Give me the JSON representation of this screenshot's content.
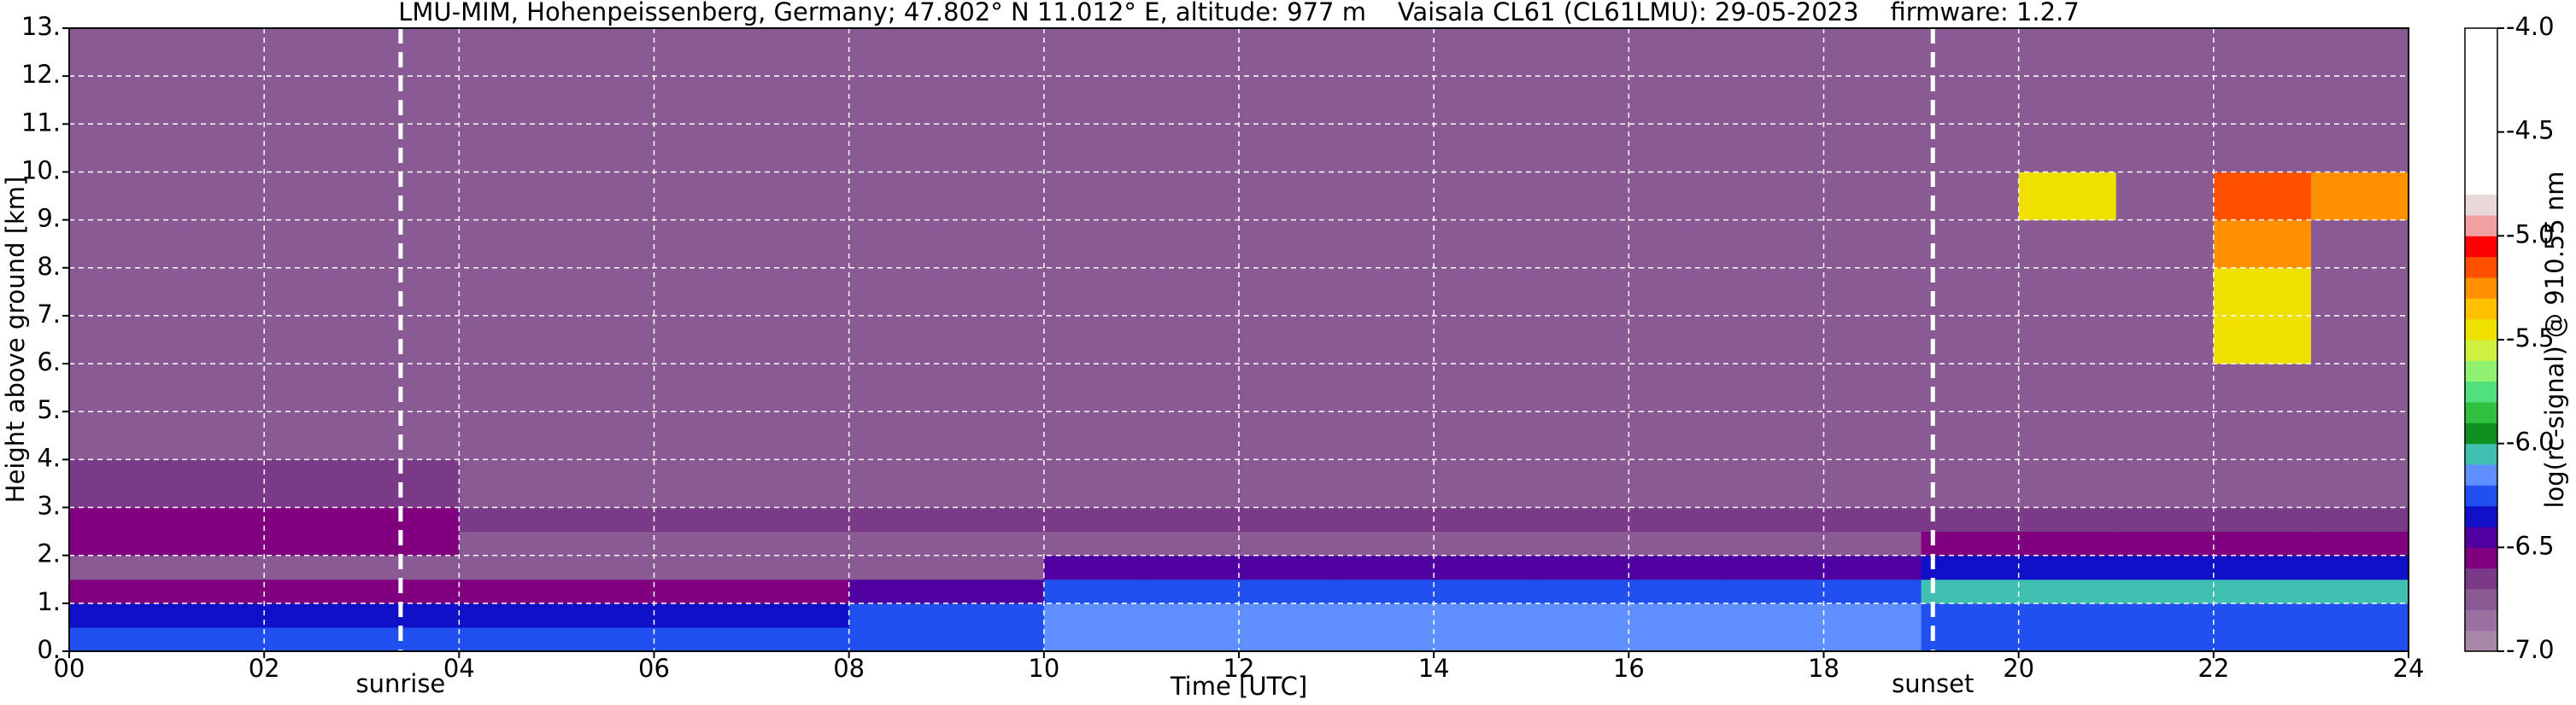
{
  "chart_data": {
    "type": "heatmap",
    "title": "LMU-MIM, Hohenpeissenberg, Germany; 47.802° N 11.012° E, altitude: 977 m    Vaisala CL61 (CL61LMU): 29-05-2023    firmware: 1.2.7",
    "x_label": "Time [UTC]",
    "y_label": "Height above ground [km]",
    "colorbar_label": "log(rc-signal) @ 910.55 nm",
    "x_bins": [
      0,
      1,
      2,
      3,
      4,
      5,
      6,
      7,
      8,
      9,
      10,
      11,
      12,
      13,
      14,
      15,
      16,
      17,
      18,
      19,
      20,
      21,
      22,
      23,
      24
    ],
    "y_bins": [
      0,
      0.5,
      1,
      1.5,
      2,
      2.5,
      3,
      4,
      6,
      8,
      9,
      10,
      13
    ],
    "z": [
      [
        -6.3,
        -6.3,
        -6.3,
        -6.3,
        -6.3,
        -6.3,
        -6.3,
        -6.3,
        -6.3,
        -6.2,
        -6.15,
        -6.15,
        -6.15,
        -6.15,
        -6.15,
        -6.15,
        -6.15,
        -6.15,
        -6.15,
        -6.2,
        -6.2,
        -6.2,
        -6.2,
        -6.2
      ],
      [
        -6.35,
        -6.35,
        -6.35,
        -6.35,
        -6.35,
        -6.35,
        -6.35,
        -6.35,
        -6.3,
        -6.3,
        -6.15,
        -6.15,
        -6.15,
        -6.15,
        -6.15,
        -6.15,
        -6.15,
        -6.15,
        -6.15,
        -6.2,
        -6.2,
        -6.2,
        -6.2,
        -6.2
      ],
      [
        -6.6,
        -6.6,
        -6.6,
        -6.6,
        -6.6,
        -6.6,
        -6.6,
        -6.6,
        -6.5,
        -6.5,
        -6.2,
        -6.2,
        -6.2,
        -6.2,
        -6.2,
        -6.2,
        -6.2,
        -6.2,
        -6.2,
        -6.1,
        -6.1,
        -6.1,
        -6.1,
        -6.1
      ],
      [
        -6.7,
        -6.7,
        -6.7,
        -6.7,
        -6.7,
        -6.7,
        -6.7,
        -6.7,
        -6.7,
        -6.7,
        -6.5,
        -6.5,
        -6.5,
        -6.5,
        -6.5,
        -6.5,
        -6.5,
        -6.5,
        -6.5,
        -6.35,
        -6.35,
        -6.35,
        -6.35,
        -6.35
      ],
      [
        -6.55,
        -6.55,
        -6.55,
        -6.55,
        -6.7,
        -6.7,
        -6.7,
        -6.7,
        -6.7,
        -6.7,
        -6.7,
        -6.7,
        -6.7,
        -6.7,
        -6.7,
        -6.7,
        -6.7,
        -6.7,
        -6.7,
        -6.55,
        -6.55,
        -6.55,
        -6.55,
        -6.55
      ],
      [
        -6.6,
        -6.6,
        -6.6,
        -6.6,
        -6.65,
        -6.65,
        -6.65,
        -6.65,
        -6.65,
        -6.65,
        -6.65,
        -6.65,
        -6.65,
        -6.65,
        -6.65,
        -6.65,
        -6.65,
        -6.65,
        -6.65,
        -6.65,
        -6.65,
        -6.65,
        -6.65,
        -6.65
      ],
      [
        -6.65,
        -6.65,
        -6.65,
        -6.65,
        -6.7,
        -6.7,
        -6.7,
        -6.7,
        -6.7,
        -6.7,
        -6.7,
        -6.7,
        -6.7,
        -6.7,
        -6.7,
        -6.7,
        -6.7,
        -6.7,
        -6.7,
        -6.7,
        -6.7,
        -6.7,
        -6.7,
        -6.7
      ],
      [
        -6.75,
        -6.75,
        -6.75,
        -6.75,
        -6.75,
        -6.75,
        -6.75,
        -6.75,
        -6.75,
        -6.75,
        -6.75,
        -6.75,
        -6.75,
        -6.75,
        -6.75,
        -6.75,
        -6.75,
        -6.75,
        -6.75,
        -6.75,
        -6.75,
        -6.75,
        -6.75,
        -6.75
      ],
      [
        -6.75,
        -6.75,
        -6.75,
        -6.75,
        -6.75,
        -6.75,
        -6.75,
        -6.75,
        -6.75,
        -6.75,
        -6.75,
        -6.75,
        -6.75,
        -6.75,
        -6.75,
        -6.75,
        -6.75,
        -6.75,
        -6.75,
        -6.75,
        -6.75,
        -6.75,
        -5.4,
        -6.75
      ],
      [
        -6.75,
        -6.75,
        -6.75,
        -6.75,
        -6.75,
        -6.75,
        -6.75,
        -6.75,
        -6.75,
        -6.75,
        -6.75,
        -6.75,
        -6.75,
        -6.75,
        -6.75,
        -6.75,
        -6.75,
        -6.75,
        -6.75,
        -6.75,
        -6.75,
        -6.75,
        -5.3,
        -6.75
      ],
      [
        -6.75,
        -6.75,
        -6.75,
        -6.75,
        -6.75,
        -6.75,
        -6.75,
        -6.75,
        -6.75,
        -6.75,
        -6.75,
        -6.75,
        -6.75,
        -6.75,
        -6.75,
        -6.75,
        -6.75,
        -6.75,
        -6.75,
        -6.75,
        -5.5,
        -6.75,
        -5.2,
        -5.3
      ],
      [
        -6.8,
        -6.8,
        -6.8,
        -6.8,
        -6.8,
        -6.8,
        -6.8,
        -6.8,
        -6.8,
        -6.8,
        -6.8,
        -6.8,
        -6.8,
        -6.8,
        -6.8,
        -6.8,
        -6.8,
        -6.8,
        -6.8,
        -6.8,
        -6.8,
        -6.8,
        -6.8,
        -6.8
      ]
    ],
    "xlim": [
      0,
      24
    ],
    "ylim": [
      0,
      13
    ],
    "zlim": [
      -7,
      -4
    ],
    "xticks": [
      {
        "value": 0,
        "label": "00"
      },
      {
        "value": 2,
        "label": "02"
      },
      {
        "value": 4,
        "label": "04"
      },
      {
        "value": 6,
        "label": "06"
      },
      {
        "value": 8,
        "label": "08"
      },
      10,
      12,
      14,
      16,
      18,
      20,
      22,
      24
    ],
    "yticks": [
      {
        "value": 0,
        "label": "0."
      },
      {
        "value": 1,
        "label": "1."
      },
      {
        "value": 2,
        "label": "2."
      },
      {
        "value": 3,
        "label": "3."
      },
      {
        "value": 4,
        "label": "4."
      },
      {
        "value": 5,
        "label": "5."
      },
      {
        "value": 6,
        "label": "6."
      },
      {
        "value": 7,
        "label": "7."
      },
      {
        "value": 8,
        "label": "8."
      },
      {
        "value": 9,
        "label": "9."
      },
      {
        "value": 10,
        "label": "10."
      },
      {
        "value": 11,
        "label": "11."
      },
      {
        "value": 12,
        "label": "12."
      },
      {
        "value": 13,
        "label": "13."
      }
    ],
    "zticks": [
      {
        "value": -7,
        "label": "-7.0"
      },
      -6.5,
      {
        "value": -6,
        "label": "-6.0"
      },
      -5.5,
      {
        "value": -5,
        "label": "-5.0"
      },
      -4.5,
      {
        "value": -4,
        "label": "-4.0"
      }
    ],
    "colormap": [
      "#a888a8",
      "#9a70a0",
      "#8a5a95",
      "#7a3a88",
      "#800080",
      "#5000a0",
      "#1010c8",
      "#2050f0",
      "#6090ff",
      "#40c0b0",
      "#109020",
      "#30c040",
      "#50e080",
      "#90f070",
      "#d0f040",
      "#f0e000",
      "#ffc000",
      "#ff9000",
      "#ff5000",
      "#ff0000",
      "#f0a0a0",
      "#ead8d8",
      "#ffffff",
      "#ffffff",
      "#ffffff",
      "#ffffff",
      "#ffffff",
      "#ffffff",
      "#ffffff",
      "#ffffff"
    ],
    "grid": true,
    "annotations": [
      {
        "text": "sunrise",
        "x": 3.4
      },
      {
        "text": "sunset",
        "x": 19.12
      }
    ]
  }
}
